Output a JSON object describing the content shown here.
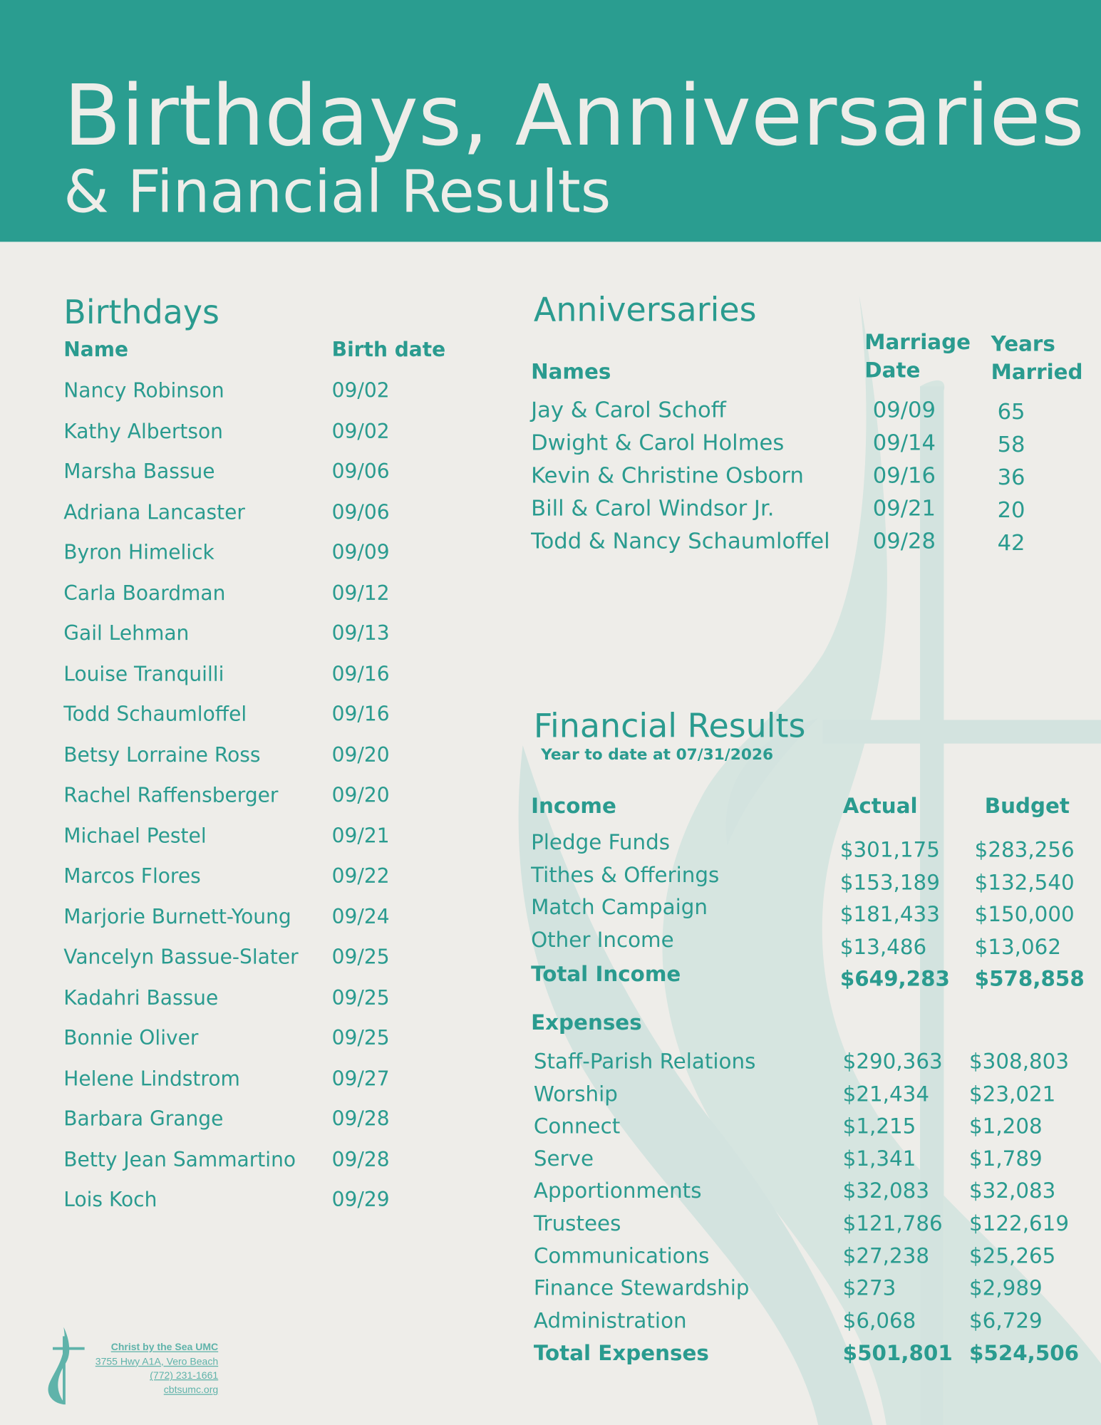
{
  "header": {
    "title": "Birthdays, Anniversaries",
    "subtitle": "& Financial Results"
  },
  "birthdays": {
    "title": "Birthdays",
    "columns": [
      "Name",
      "Birth date"
    ],
    "rows": [
      [
        "Nancy Robinson",
        "09/02"
      ],
      [
        "Kathy Albertson",
        "09/02"
      ],
      [
        "Marsha Bassue",
        "09/06"
      ],
      [
        "Adriana Lancaster",
        "09/06"
      ],
      [
        "Byron Himelick",
        "09/09"
      ],
      [
        "Carla Boardman",
        "09/12"
      ],
      [
        "Gail Lehman",
        "09/13"
      ],
      [
        "Louise Tranquilli",
        "09/16"
      ],
      [
        "Todd Schaumloffel",
        "09/16"
      ],
      [
        "Betsy Lorraine Ross",
        "09/20"
      ],
      [
        "Rachel Raffensberger",
        "09/20"
      ],
      [
        "Michael Pestel",
        "09/21"
      ],
      [
        "Marcos Flores",
        "09/22"
      ],
      [
        "Marjorie Burnett-Young",
        "09/24"
      ],
      [
        "Vancelyn Bassue-Slater",
        "09/25"
      ],
      [
        "Kadahri Bassue",
        "09/25"
      ],
      [
        "Bonnie Oliver",
        "09/25"
      ],
      [
        "Helene Lindstrom",
        "09/27"
      ],
      [
        "Barbara Grange",
        "09/28"
      ],
      [
        "Betty Jean Sammartino",
        "09/28"
      ],
      [
        "Lois Koch",
        "09/29"
      ]
    ]
  },
  "anniversaries": {
    "title": "Anniversaries",
    "columns": [
      "Names",
      "Marriage Date",
      "Years Married"
    ],
    "rows": [
      [
        "Jay & Carol Schoff",
        "09/09",
        "65"
      ],
      [
        "Dwight & Carol Holmes",
        "09/14",
        "58"
      ],
      [
        "Kevin & Christine Osborn",
        "09/16",
        "36"
      ],
      [
        "Bill & Carol Windsor Jr.",
        "09/21",
        "20"
      ],
      [
        "Todd & Nancy Schaumloffel",
        "09/28",
        "42"
      ]
    ]
  },
  "financial": {
    "title": "Financial Results",
    "subtitle": "Year to date at 07/31/2026",
    "income": {
      "columns": [
        "Income",
        "Actual",
        "Budget"
      ],
      "rows": [
        [
          "Pledge Funds",
          "$301,175",
          "$283,256"
        ],
        [
          "Tithes & Offerings",
          "$153,189",
          "$132,540"
        ],
        [
          "Match Campaign",
          "$181,433",
          "$150,000"
        ],
        [
          "Other Income",
          "$13,486",
          "$13,062"
        ]
      ],
      "total": [
        "Total Income",
        "$649,283",
        "$578,858"
      ]
    },
    "expenses": {
      "heading": "Expenses",
      "rows": [
        [
          "Staff-Parish Relations",
          "$290,363",
          "$308,803"
        ],
        [
          "Worship",
          "$21,434",
          "$23,021"
        ],
        [
          "Connect",
          "$1,215",
          "$1,208"
        ],
        [
          "Serve",
          "$1,341",
          "$1,789"
        ],
        [
          "Apportionments",
          "$32,083",
          "$32,083"
        ],
        [
          "Trustees",
          "$121,786",
          "$122,619"
        ],
        [
          "Communications",
          "$27,238",
          "$25,265"
        ],
        [
          "Finance Stewardship",
          "$273",
          "$2,989"
        ],
        [
          "Administration",
          "$6,068",
          "$6,729"
        ]
      ],
      "total": [
        "Total Expenses",
        "$501,801",
        "$524,506"
      ]
    }
  },
  "footer": {
    "org": "Christ by the Sea UMC",
    "address": "3755 Hwy A1A, Vero Beach",
    "phone": "(772) 231-1661",
    "website": "cbtsumc.org"
  }
}
